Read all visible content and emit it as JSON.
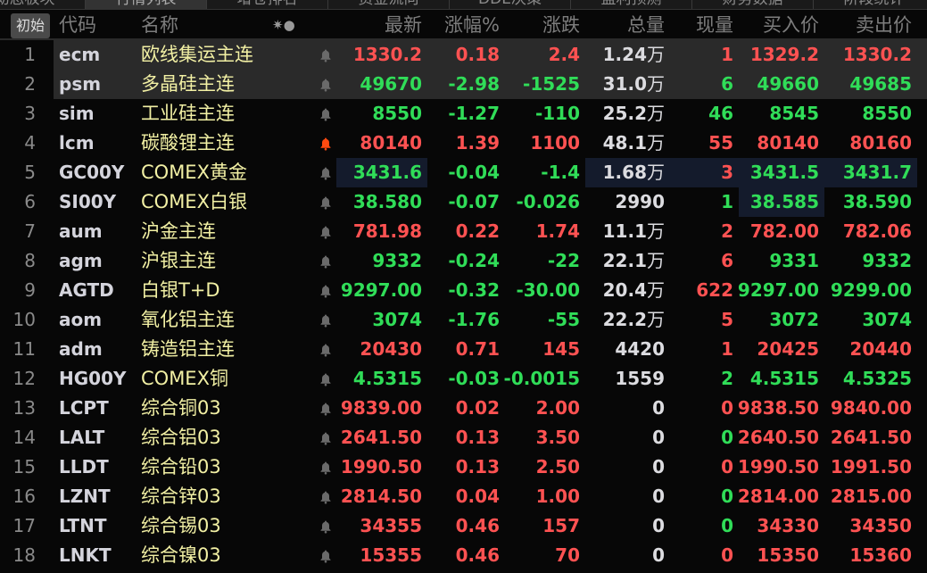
{
  "tabs": [
    "动态板块",
    "行情列表",
    "增仓排名",
    "资金流向",
    "DDE决策",
    "盈利预测",
    "财务数据",
    "阶段统计"
  ],
  "active_tab": 1,
  "header": {
    "init": "初始",
    "code": "代码",
    "name": "名称",
    "icons": "✷●",
    "latest": "最新",
    "change_pct": "涨幅%",
    "change": "涨跌",
    "volume": "总量",
    "current_vol": "现量",
    "bid": "买入价",
    "ask": "卖出价"
  },
  "colors": {
    "up": "#ff5252",
    "down": "#30dd58",
    "neutral": "#dcdce0",
    "name": "#f2f0a4",
    "alert_bell": "#ff4a10",
    "bell": "#6a6a6a"
  },
  "rows": [
    {
      "n": "1",
      "code": "ecm",
      "name": "欧线集运主连",
      "bell": "gray",
      "last": "1330.2",
      "pct": "0.18",
      "chg": "2.4",
      "vol": "1.24",
      "unit": "万",
      "cur": "1",
      "bid": "1329.2",
      "ask": "1330.2",
      "c": "r",
      "cc": "r"
    },
    {
      "n": "2",
      "code": "psm",
      "name": "多晶硅主连",
      "bell": "gray",
      "last": "49670",
      "pct": "-2.98",
      "chg": "-1525",
      "vol": "31.0",
      "unit": "万",
      "cur": "6",
      "bid": "49660",
      "ask": "49685",
      "c": "g",
      "cc": "g"
    },
    {
      "n": "3",
      "code": "sim",
      "name": "工业硅主连",
      "bell": "gray",
      "last": "8550",
      "pct": "-1.27",
      "chg": "-110",
      "vol": "25.2",
      "unit": "万",
      "cur": "46",
      "bid": "8545",
      "ask": "8550",
      "c": "g",
      "cc": "g"
    },
    {
      "n": "4",
      "code": "lcm",
      "name": "碳酸锂主连",
      "bell": "alert",
      "last": "80140",
      "pct": "1.39",
      "chg": "1100",
      "vol": "48.1",
      "unit": "万",
      "cur": "55",
      "bid": "80140",
      "ask": "80160",
      "c": "r",
      "cc": "r"
    },
    {
      "n": "5",
      "code": "GC00Y",
      "name": "COMEX黄金",
      "bell": "gray",
      "last": "3431.6",
      "pct": "-0.04",
      "chg": "-1.4",
      "vol": "1.68",
      "unit": "万",
      "cur": "3",
      "bid": "3431.5",
      "ask": "3431.7",
      "c": "g",
      "cc": "r"
    },
    {
      "n": "6",
      "code": "SI00Y",
      "name": "COMEX白银",
      "bell": "gray",
      "last": "38.580",
      "pct": "-0.07",
      "chg": "-0.026",
      "vol": "2990",
      "unit": "",
      "cur": "1",
      "bid": "38.585",
      "ask": "38.590",
      "c": "g",
      "cc": "g"
    },
    {
      "n": "7",
      "code": "aum",
      "name": "沪金主连",
      "bell": "gray",
      "last": "781.98",
      "pct": "0.22",
      "chg": "1.74",
      "vol": "11.1",
      "unit": "万",
      "cur": "2",
      "bid": "782.00",
      "ask": "782.06",
      "c": "r",
      "cc": "r"
    },
    {
      "n": "8",
      "code": "agm",
      "name": "沪银主连",
      "bell": "gray",
      "last": "9332",
      "pct": "-0.24",
      "chg": "-22",
      "vol": "22.1",
      "unit": "万",
      "cur": "6",
      "bid": "9331",
      "ask": "9332",
      "c": "g",
      "cc": "r"
    },
    {
      "n": "9",
      "code": "AGTD",
      "name": "白银T+D",
      "bell": "gray",
      "last": "9297.00",
      "pct": "-0.32",
      "chg": "-30.00",
      "vol": "20.4",
      "unit": "万",
      "cur": "622",
      "bid": "9297.00",
      "ask": "9299.00",
      "c": "g",
      "cc": "r"
    },
    {
      "n": "10",
      "code": "aom",
      "name": "氧化铝主连",
      "bell": "gray",
      "last": "3074",
      "pct": "-1.76",
      "chg": "-55",
      "vol": "22.2",
      "unit": "万",
      "cur": "5",
      "bid": "3072",
      "ask": "3074",
      "c": "g",
      "cc": "r"
    },
    {
      "n": "11",
      "code": "adm",
      "name": "铸造铝主连",
      "bell": "gray",
      "last": "20430",
      "pct": "0.71",
      "chg": "145",
      "vol": "4420",
      "unit": "",
      "cur": "1",
      "bid": "20425",
      "ask": "20440",
      "c": "r",
      "cc": "r"
    },
    {
      "n": "12",
      "code": "HG00Y",
      "name": "COMEX铜",
      "bell": "gray",
      "last": "4.5315",
      "pct": "-0.03",
      "chg": "-0.0015",
      "vol": "1559",
      "unit": "",
      "cur": "2",
      "bid": "4.5315",
      "ask": "4.5325",
      "c": "g",
      "cc": "g"
    },
    {
      "n": "13",
      "code": "LCPT",
      "name": "综合铜03",
      "bell": "gray",
      "last": "9839.00",
      "pct": "0.02",
      "chg": "2.00",
      "vol": "0",
      "unit": "",
      "cur": "0",
      "bid": "9838.50",
      "ask": "9840.00",
      "c": "r",
      "cc": "r"
    },
    {
      "n": "14",
      "code": "LALT",
      "name": "综合铝03",
      "bell": "gray",
      "last": "2641.50",
      "pct": "0.13",
      "chg": "3.50",
      "vol": "0",
      "unit": "",
      "cur": "0",
      "bid": "2640.50",
      "ask": "2641.50",
      "c": "r",
      "cc": "g"
    },
    {
      "n": "15",
      "code": "LLDT",
      "name": "综合铅03",
      "bell": "gray",
      "last": "1990.50",
      "pct": "0.13",
      "chg": "2.50",
      "vol": "0",
      "unit": "",
      "cur": "0",
      "bid": "1990.50",
      "ask": "1991.50",
      "c": "r",
      "cc": "r"
    },
    {
      "n": "16",
      "code": "LZNT",
      "name": "综合锌03",
      "bell": "gray",
      "last": "2814.50",
      "pct": "0.04",
      "chg": "1.00",
      "vol": "0",
      "unit": "",
      "cur": "0",
      "bid": "2814.00",
      "ask": "2815.00",
      "c": "r",
      "cc": "g"
    },
    {
      "n": "17",
      "code": "LTNT",
      "name": "综合锡03",
      "bell": "gray",
      "last": "34355",
      "pct": "0.46",
      "chg": "157",
      "vol": "0",
      "unit": "",
      "cur": "0",
      "bid": "34330",
      "ask": "34350",
      "c": "r",
      "cc": "g"
    },
    {
      "n": "18",
      "code": "LNKT",
      "name": "综合镍03",
      "bell": "gray",
      "last": "15355",
      "pct": "0.46",
      "chg": "70",
      "vol": "0",
      "unit": "",
      "cur": "0",
      "bid": "15350",
      "ask": "15360",
      "c": "r",
      "cc": "r"
    }
  ]
}
